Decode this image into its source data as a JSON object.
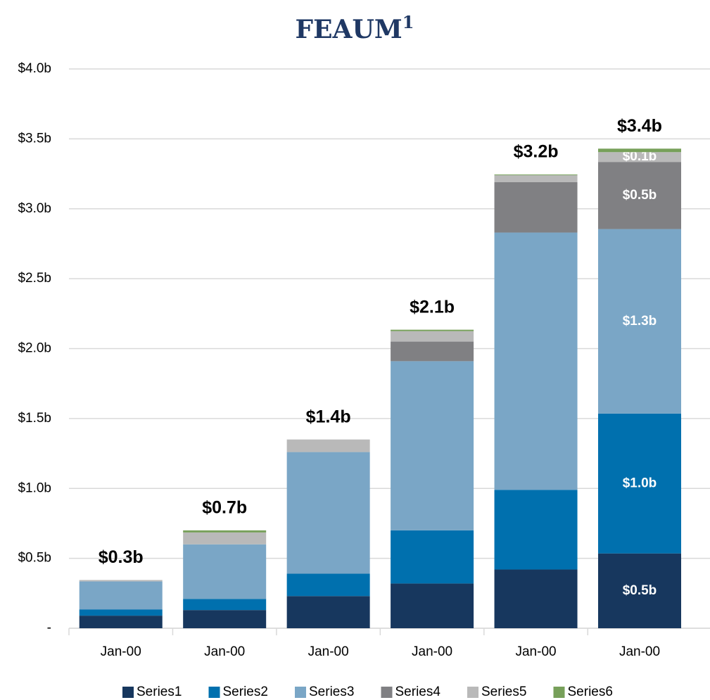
{
  "chart_data": {
    "type": "stacked_bar",
    "title": "FEAUM",
    "title_superscript": "1",
    "categories": [
      "Jan-00",
      "Jan-00",
      "Jan-00",
      "Jan-00",
      "Jan-00",
      "Jan-00"
    ],
    "series": [
      {
        "name": "Series1",
        "color": "#17375e",
        "values": [
          0.09,
          0.13,
          0.23,
          0.32,
          0.42,
          0.535
        ],
        "value_labels": [
          null,
          null,
          null,
          null,
          null,
          "$0.5b"
        ]
      },
      {
        "name": "Series2",
        "color": "#0070ae",
        "values": [
          0.045,
          0.08,
          0.16,
          0.38,
          0.57,
          1.0
        ],
        "value_labels": [
          null,
          null,
          null,
          null,
          null,
          "$1.0b"
        ]
      },
      {
        "name": "Series3",
        "color": "#7aa6c6",
        "values": [
          0.2,
          0.39,
          0.87,
          1.21,
          1.84,
          1.32
        ],
        "value_labels": [
          null,
          null,
          null,
          null,
          null,
          "$1.3b"
        ]
      },
      {
        "name": "Series4",
        "color": "#808083",
        "values": [
          0,
          0,
          0,
          0.14,
          0.36,
          0.48
        ],
        "value_labels": [
          null,
          null,
          null,
          null,
          null,
          "$0.5b"
        ]
      },
      {
        "name": "Series5",
        "color": "#b9b9b9",
        "values": [
          0.01,
          0.085,
          0.09,
          0.075,
          0.05,
          0.07
        ],
        "value_labels": [
          null,
          null,
          null,
          null,
          null,
          "$0.1b"
        ]
      },
      {
        "name": "Series6",
        "color": "#77a05a",
        "values": [
          0,
          0.015,
          0,
          0.01,
          0.005,
          0.025
        ]
      }
    ],
    "totals": {
      "values": [
        0.345,
        0.7,
        1.35,
        2.135,
        3.245,
        3.43
      ],
      "value_labels": [
        "$0.3b",
        "$0.7b",
        "$1.4b",
        "$2.1b",
        "$3.2b",
        "$3.4b"
      ]
    },
    "ylim": [
      0,
      4
    ],
    "yticks": [
      {
        "value": 0,
        "label": "-"
      },
      {
        "value": 0.5,
        "label": "$0.5b"
      },
      {
        "value": 1,
        "label": "$1.0b"
      },
      {
        "value": 1.5,
        "label": "$1.5b"
      },
      {
        "value": 2,
        "label": "$2.0b"
      },
      {
        "value": 2.5,
        "label": "$2.5b"
      },
      {
        "value": 3,
        "label": "$3.0b"
      },
      {
        "value": 3.5,
        "label": "$3.5b"
      },
      {
        "value": 4,
        "label": "$4.0b"
      }
    ],
    "grid": true,
    "legend": "bottom"
  }
}
